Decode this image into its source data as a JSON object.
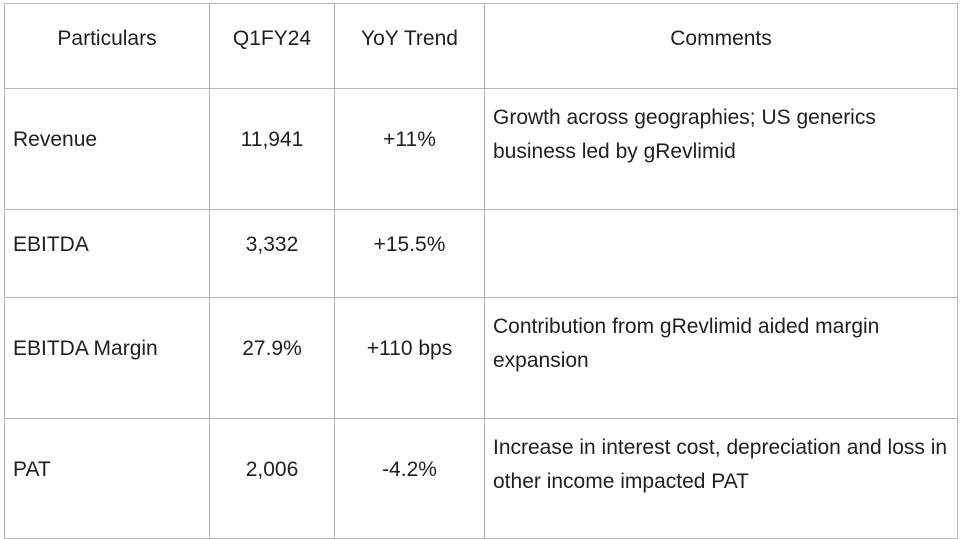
{
  "table": {
    "headers": [
      "Particulars",
      "Q1FY24",
      "YoY Trend",
      "Comments"
    ],
    "rows": [
      {
        "particular": "Revenue",
        "value": "11,941",
        "trend": "+11%",
        "comment": "Growth across geographies; US generics business led by gRevlimid"
      },
      {
        "particular": "EBITDA",
        "value": "3,332",
        "trend": "+15.5%",
        "comment": ""
      },
      {
        "particular": "EBITDA Margin",
        "value": "27.9%",
        "trend": "+110 bps",
        "comment": "Contribution from gRevlimid aided margin expansion"
      },
      {
        "particular": "PAT",
        "value": "2,006",
        "trend": "-4.2%",
        "comment": "Increase in interest cost, depreciation and loss in other income impacted PAT"
      }
    ]
  }
}
